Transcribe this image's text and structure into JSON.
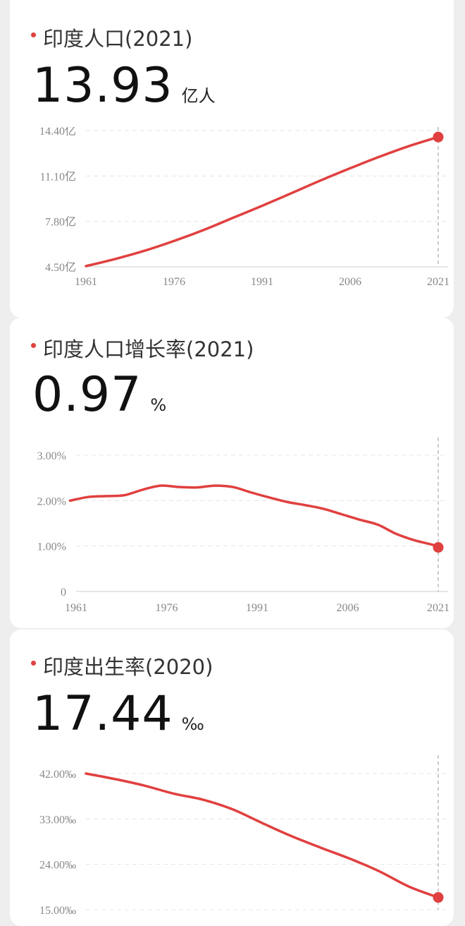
{
  "accent_color": "#e0403f",
  "cards": [
    {
      "title": "印度人口(2021)",
      "value": "13.93",
      "unit": "亿人"
    },
    {
      "title": "印度人口增长率(2021)",
      "value": "0.97",
      "unit": "%"
    },
    {
      "title": "印度出生率(2020)",
      "value": "17.44",
      "unit": "‰"
    }
  ],
  "chart_data": [
    {
      "type": "line",
      "title": "印度人口(2021)",
      "x_ticks": [
        "1961",
        "1976",
        "1991",
        "2006",
        "2021"
      ],
      "y_ticks": [
        "4.50亿",
        "7.80亿",
        "11.10亿",
        "14.40亿"
      ],
      "ylim": [
        4.5,
        14.4
      ],
      "xlim": [
        1961,
        2021
      ],
      "grid": true,
      "series": [
        {
          "x": [
            1961,
            1966,
            1971,
            1976,
            1981,
            1986,
            1991,
            1996,
            2001,
            2006,
            2011,
            2016,
            2021
          ],
          "values": [
            4.55,
            5.07,
            5.67,
            6.38,
            7.17,
            8.05,
            8.93,
            9.85,
            10.78,
            11.66,
            12.5,
            13.27,
            13.93
          ]
        }
      ]
    },
    {
      "type": "line",
      "title": "印度人口增长率(2021)",
      "x_ticks": [
        "1961",
        "1976",
        "1991",
        "2006",
        "2021"
      ],
      "y_ticks": [
        "0",
        "1.00%",
        "2.00%",
        "3.00%"
      ],
      "ylim": [
        0,
        3
      ],
      "xlim": [
        1961,
        2021
      ],
      "grid": true,
      "series": [
        {
          "x": [
            1960,
            1963,
            1966,
            1969,
            1972,
            1975,
            1978,
            1981,
            1984,
            1987,
            1990,
            1993,
            1996,
            1999,
            2002,
            2005,
            2008,
            2011,
            2014,
            2017,
            2020,
            2021
          ],
          "values": [
            2.0,
            2.08,
            2.1,
            2.12,
            2.24,
            2.33,
            2.3,
            2.29,
            2.33,
            2.3,
            2.18,
            2.07,
            1.97,
            1.9,
            1.82,
            1.7,
            1.58,
            1.47,
            1.27,
            1.13,
            1.03,
            0.97
          ]
        }
      ]
    },
    {
      "type": "line",
      "title": "印度出生率(2020)",
      "x_ticks": [],
      "y_ticks": [
        "15.00‰",
        "24.00‰",
        "33.00‰",
        "42.00‰"
      ],
      "ylim": [
        15,
        42
      ],
      "xlim": [
        1960,
        2020
      ],
      "grid": true,
      "series": [
        {
          "x": [
            1960,
            1965,
            1970,
            1975,
            1980,
            1985,
            1990,
            1995,
            2000,
            2005,
            2010,
            2015,
            2020
          ],
          "values": [
            42.0,
            40.9,
            39.6,
            38.0,
            36.8,
            34.9,
            32.2,
            29.6,
            27.3,
            25.1,
            22.6,
            19.6,
            17.44
          ]
        }
      ]
    }
  ]
}
